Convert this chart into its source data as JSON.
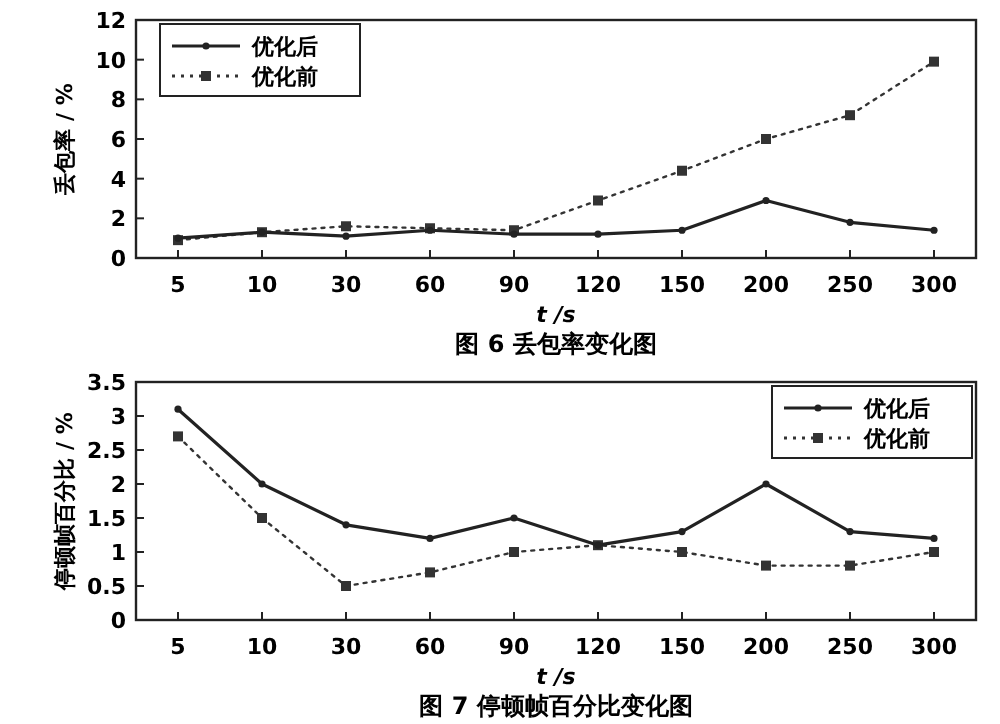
{
  "chart_data": [
    {
      "type": "line",
      "title": "图 6 丢包率变化图",
      "xlabel": "t /s",
      "ylabel": "丢包率 / %",
      "categories": [
        "5",
        "10",
        "30",
        "60",
        "90",
        "120",
        "150",
        "200",
        "250",
        "300"
      ],
      "series": [
        {
          "name": "优化后",
          "color": "#222222",
          "marker": "circle",
          "line_style": "solid",
          "values": [
            1.0,
            1.3,
            1.1,
            1.4,
            1.2,
            1.2,
            1.4,
            2.9,
            1.8,
            1.4
          ]
        },
        {
          "name": "优化前",
          "color": "#333333",
          "marker": "square",
          "line_style": "dotted",
          "values": [
            0.9,
            1.3,
            1.6,
            1.5,
            1.4,
            2.9,
            4.4,
            6.0,
            7.2,
            9.9
          ]
        }
      ],
      "ylim": [
        0,
        12
      ],
      "yticks": [
        0,
        2,
        4,
        6,
        8,
        10,
        12
      ],
      "grid": false,
      "legend": "top left"
    },
    {
      "type": "line",
      "title": "图 7 停顿帧百分比变化图",
      "xlabel": "t /s",
      "ylabel": "停顿帧百分比 / %",
      "categories": [
        "5",
        "10",
        "30",
        "60",
        "90",
        "120",
        "150",
        "200",
        "250",
        "300"
      ],
      "series": [
        {
          "name": "优化后",
          "color": "#222222",
          "marker": "circle",
          "line_style": "solid",
          "values": [
            3.1,
            2.0,
            1.4,
            1.2,
            1.5,
            1.1,
            1.3,
            2.0,
            1.3,
            1.2
          ]
        },
        {
          "name": "优化前",
          "color": "#333333",
          "marker": "square",
          "line_style": "dotted",
          "values": [
            2.7,
            1.5,
            0.5,
            0.7,
            1.0,
            1.1,
            1.0,
            0.8,
            0.8,
            1.0
          ]
        }
      ],
      "ylim": [
        0,
        3.5
      ],
      "yticks": [
        0,
        0.5,
        1,
        1.5,
        2,
        2.5,
        3,
        3.5
      ],
      "grid": false,
      "legend": "top right"
    }
  ]
}
